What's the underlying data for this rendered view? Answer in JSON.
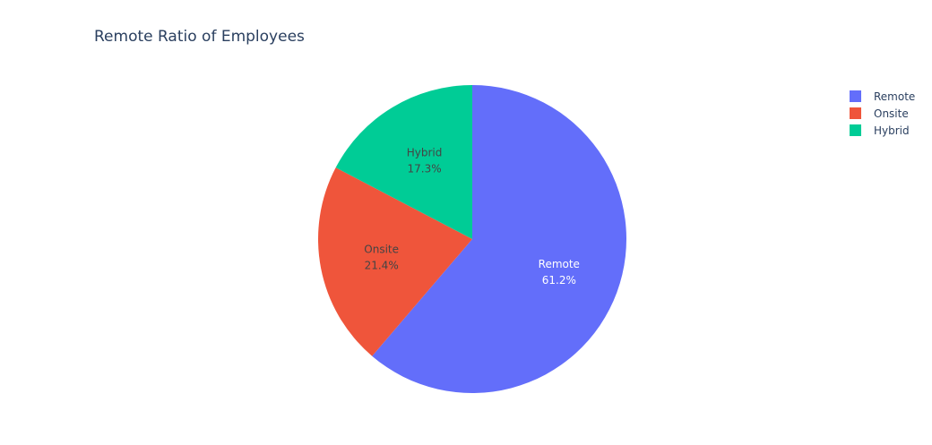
{
  "chart_data": {
    "type": "pie",
    "title": "Remote Ratio of Employees",
    "labels": [
      "Remote",
      "Onsite",
      "Hybrid"
    ],
    "values": [
      61.2,
      21.4,
      17.3
    ],
    "value_labels": [
      "61.2%",
      "21.4%",
      "17.3%"
    ],
    "colors": [
      "#636efa",
      "#ef553b",
      "#00cc96"
    ],
    "label_colors": [
      "#ffffff",
      "#444444",
      "#444444"
    ],
    "legend_position": "top-right",
    "direction": "clockwise",
    "start": "top"
  }
}
